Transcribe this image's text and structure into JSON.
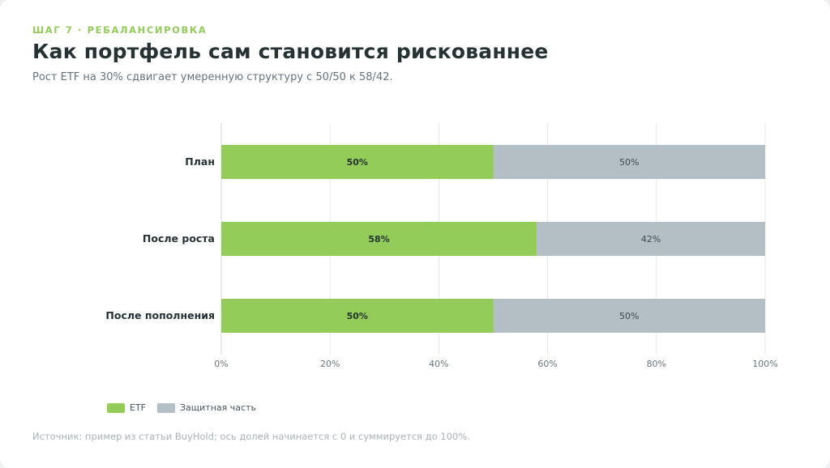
{
  "header": {
    "eyebrow": "ШАГ 7 · РЕБАЛАНСИРОВКА",
    "title": "Как портфель сам становится рискованнее",
    "subtitle": "Рост ETF на 30% сдвигает умеренную структуру с 50/50 к 58/42."
  },
  "colors": {
    "etf": "#93cc58",
    "defensive": "#b3bec5",
    "grid": "#e4e7ea",
    "tick_text": "#6b757b"
  },
  "chart_data": {
    "type": "bar",
    "orientation": "horizontal",
    "stacked": true,
    "categories": [
      "План",
      "После роста",
      "После пополнения"
    ],
    "series": [
      {
        "name": "ETF",
        "values": [
          50,
          58,
          50
        ],
        "labels": [
          "50%",
          "58%",
          "50%"
        ]
      },
      {
        "name": "Защитная часть",
        "values": [
          50,
          42,
          50
        ],
        "labels": [
          "50%",
          "42%",
          "50%"
        ]
      }
    ],
    "xlim": [
      0,
      100
    ],
    "xticks": [
      0,
      20,
      40,
      60,
      80,
      100
    ],
    "xtick_labels": [
      "0%",
      "20%",
      "40%",
      "60%",
      "80%",
      "100%"
    ],
    "grid": true,
    "legend_position": "bottom-left"
  },
  "legend": {
    "items": [
      {
        "label": "ETF"
      },
      {
        "label": "Защитная часть"
      }
    ]
  },
  "footer": {
    "source": "Источник: пример из статьи BuyHold; ось долей начинается с 0 и суммируется до 100%."
  }
}
